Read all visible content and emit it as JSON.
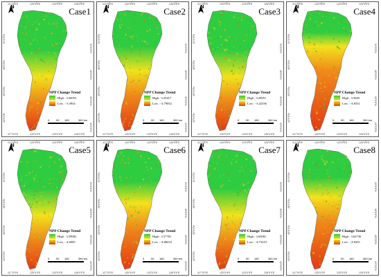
{
  "legend_title": "NPP Change Trend",
  "scale_labels": [
    "0",
    "90",
    "180",
    "360 km"
  ],
  "lon_ticks": [
    "117°0'0\"E",
    "120°0'0\"E",
    "123°0'0\"E",
    "126°0'0\"E"
  ],
  "lat_ticks": [
    "51°0'0\"N",
    "48°0'0\"N",
    "45°0'0\"N",
    "42°0'0\"N"
  ],
  "north_label": "N",
  "colors": {
    "high": "#2ecc40",
    "mid": "#f2e21c",
    "low": "#e23a12"
  },
  "cases": [
    {
      "title": "Case1",
      "high": "High : 3.26053",
      "low": "Low : -3.3934",
      "green_share": 0.55
    },
    {
      "title": "Case2",
      "high": "High : 3.25417",
      "low": "Low : -4.79052",
      "green_share": 0.5
    },
    {
      "title": "Case3",
      "high": "High : 3.28951",
      "low": "Low : -3.42336",
      "green_share": 0.55
    },
    {
      "title": "Case4",
      "high": "High : 3.5649",
      "low": "Low : -4.8331",
      "green_share": 0.3
    },
    {
      "title": "Case5",
      "high": "High : 3.59082",
      "low": "Low : -4.6905",
      "green_share": 0.55
    },
    {
      "title": "Case6",
      "high": "High : 3.57781",
      "low": "Low : -4.88233",
      "green_share": 0.45
    },
    {
      "title": "Case7",
      "high": "High : 3.63081",
      "low": "Low : -4.73219",
      "green_share": 0.55
    },
    {
      "title": "Case8",
      "high": "High : 3.62736",
      "low": "Low : -4.8435",
      "green_share": 0.4
    }
  ]
}
